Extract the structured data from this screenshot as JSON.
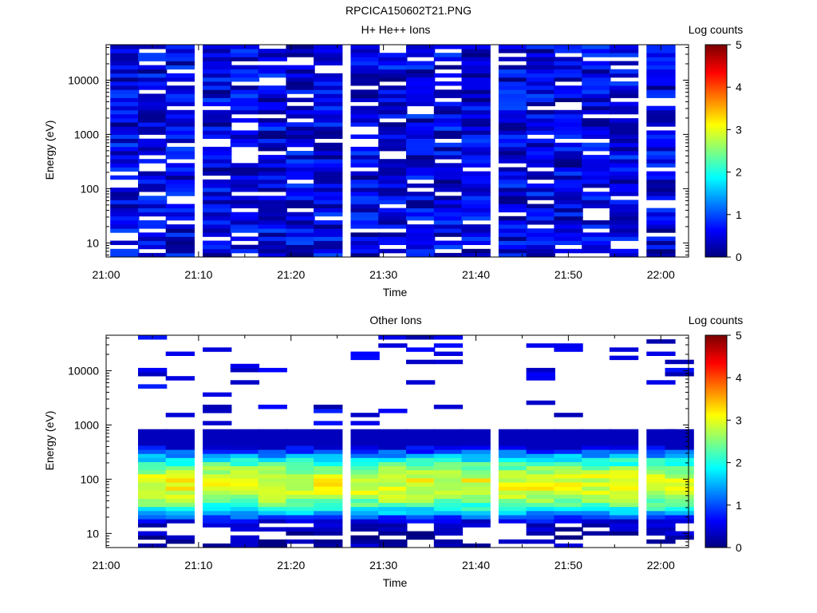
{
  "page_title": "RPCICA150602T21.PNG",
  "chart_data": [
    {
      "type": "heatmap",
      "title": "H+ He++ Ions",
      "xlabel": "Time",
      "ylabel": "Energy (eV)",
      "y_scale": "log",
      "ylim": [
        5.5,
        45000
      ],
      "xlim": [
        "21:00",
        "22:03"
      ],
      "x_ticks": [
        "21:00",
        "21:10",
        "21:20",
        "21:30",
        "21:40",
        "21:50",
        "22:00"
      ],
      "y_ticks": [
        "10",
        "100",
        "1000",
        "10000"
      ],
      "colorbar": {
        "label": "Log counts",
        "ticks": [
          "0",
          "1",
          "2",
          "3",
          "4",
          "5"
        ],
        "range": [
          0,
          5
        ],
        "colormap": "jet"
      },
      "time_bins": [
        "21:02",
        "21:05",
        "21:08",
        "21:12",
        "21:15",
        "21:18",
        "21:21",
        "21:24",
        "21:28",
        "21:31",
        "21:34",
        "21:37",
        "21:40",
        "21:44",
        "21:47",
        "21:50",
        "21:53",
        "21:56",
        "22:00"
      ],
      "energy_range_eV": [
        5.5,
        45000
      ],
      "energy_bins": 52,
      "value_range_log_counts": [
        0,
        1.0
      ],
      "seed": 7,
      "profile": "uniform_low"
    },
    {
      "type": "heatmap",
      "title": "Other Ions",
      "xlabel": "Time",
      "ylabel": "Energy (eV)",
      "y_scale": "log",
      "ylim": [
        5.5,
        45000
      ],
      "xlim": [
        "21:00",
        "22:03"
      ],
      "x_ticks": [
        "21:00",
        "21:10",
        "21:20",
        "21:30",
        "21:40",
        "21:50",
        "22:00"
      ],
      "y_ticks": [
        "10",
        "100",
        "1000",
        "10000"
      ],
      "colorbar": {
        "label": "Log counts",
        "ticks": [
          "0",
          "1",
          "2",
          "3",
          "4",
          "5"
        ],
        "range": [
          0,
          5
        ],
        "colormap": "jet"
      },
      "time_bins": [
        "21:05",
        "21:08",
        "21:12",
        "21:15",
        "21:18",
        "21:21",
        "21:24",
        "21:28",
        "21:31",
        "21:34",
        "21:37",
        "21:40",
        "21:44",
        "21:47",
        "21:50",
        "21:53",
        "21:56",
        "22:00",
        "22:02"
      ],
      "energy_range_eV": [
        5.5,
        45000
      ],
      "energy_bins": 52,
      "value_range_log_counts": [
        0,
        3.0
      ],
      "peak_energy_eV": 80,
      "seed": 13,
      "profile": "peaked"
    }
  ]
}
